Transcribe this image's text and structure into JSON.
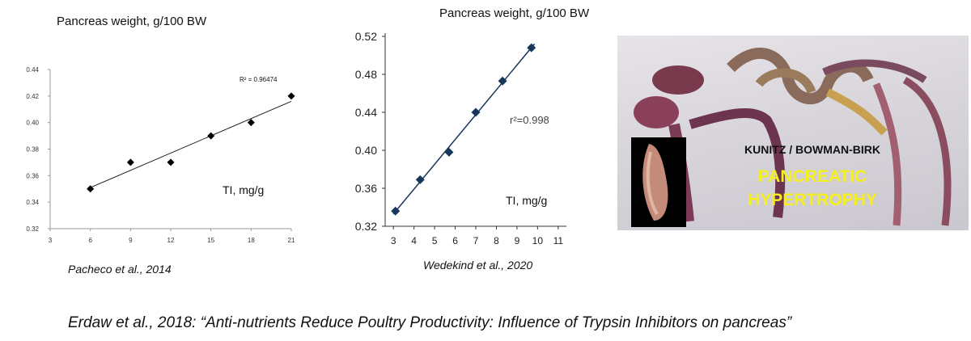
{
  "left_chart": {
    "title": "Pancreas weight, g/100 BW",
    "x_annotation": "TI, mg/g",
    "citation": "Pacheco et al., 2014",
    "chart_data": {
      "type": "scatter",
      "x_ticks": [
        "3",
        "6",
        "9",
        "12",
        "15",
        "18",
        "21"
      ],
      "y_ticks": [
        "0.32",
        "0.34",
        "0.36",
        "0.38",
        "0.40",
        "0.42",
        "0.44"
      ],
      "xlim": [
        3,
        21
      ],
      "ylim": [
        0.32,
        0.44
      ],
      "points": [
        [
          6,
          0.35
        ],
        [
          9,
          0.37
        ],
        [
          12,
          0.37
        ],
        [
          15,
          0.39
        ],
        [
          18,
          0.4
        ],
        [
          21,
          0.42
        ]
      ],
      "trendline": {
        "x": [
          6,
          21
        ],
        "y": [
          0.351,
          0.416
        ]
      },
      "annotation": "R² = 0.96474",
      "marker": "diamond",
      "grid": false
    }
  },
  "right_chart": {
    "title": "Pancreas weight, g/100 BW",
    "x_annotation": "TI, mg/g",
    "citation": "Wedekind et al., 2020",
    "chart_data": {
      "type": "scatter",
      "x_ticks": [
        "3",
        "4",
        "5",
        "6",
        "7",
        "8",
        "9",
        "10",
        "11"
      ],
      "y_ticks": [
        "0.32",
        "0.36",
        "0.40",
        "0.44",
        "0.48",
        "0.52"
      ],
      "xlim": [
        2.6,
        11.4
      ],
      "ylim": [
        0.32,
        0.52
      ],
      "points": [
        [
          3.1,
          0.336
        ],
        [
          4.3,
          0.369
        ],
        [
          5.7,
          0.398
        ],
        [
          7.0,
          0.44
        ],
        [
          8.3,
          0.473
        ],
        [
          9.7,
          0.508
        ]
      ],
      "trendline": {
        "x": [
          3.0,
          9.85
        ],
        "y": [
          0.333,
          0.512
        ]
      },
      "annotation": "r²=0.998",
      "marker": "diamond",
      "color": "#16365c",
      "grid": false
    }
  },
  "photo": {
    "label1": "KUNITZ / BOWMAN-BIRK",
    "label2": "PANCREATIC",
    "label3": "HYPERTROPHY",
    "label_color": "#f5f01c"
  },
  "caption": "Erdaw et al., 2018: “Anti-nutrients Reduce Poultry Productivity: Influence of Trypsin Inhibitors on pancreas”"
}
